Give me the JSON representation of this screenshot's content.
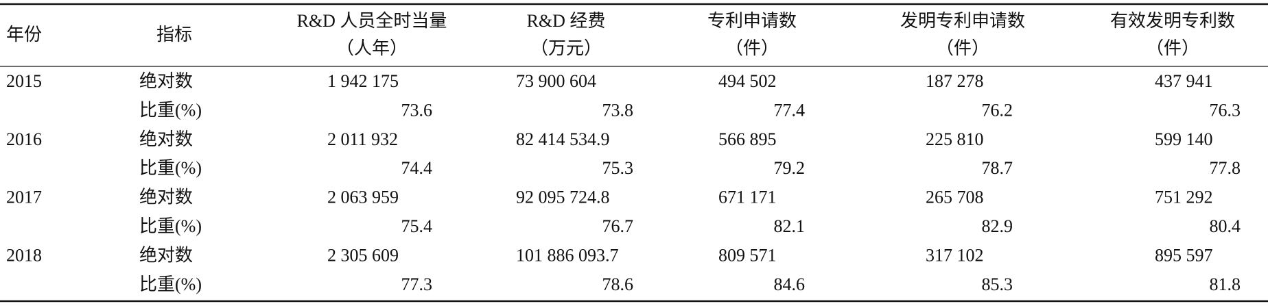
{
  "table": {
    "columns": [
      {
        "title": "年份"
      },
      {
        "title": "指标"
      },
      {
        "title": "R&D 人员全时当量",
        "unit": "（人年）"
      },
      {
        "title": "R&D 经费",
        "unit": "（万元）"
      },
      {
        "title": "专利申请数",
        "unit": "（件）"
      },
      {
        "title": "发明专利申请数",
        "unit": "（件）"
      },
      {
        "title": "有效发明专利数",
        "unit": "（件）"
      }
    ],
    "rows": [
      {
        "year": "2015",
        "absolute": {
          "label": "绝对数",
          "values": [
            "1 942 175",
            "73 900 604",
            "494 502",
            "187 278",
            "437 941"
          ]
        },
        "share": {
          "label": "比重(%)",
          "values": [
            "73.6",
            "73.8",
            "77.4",
            "76.2",
            "76.3"
          ]
        }
      },
      {
        "year": "2016",
        "absolute": {
          "label": "绝对数",
          "values": [
            "2 011 932",
            "82 414 534.9",
            "566 895",
            "225 810",
            "599 140"
          ]
        },
        "share": {
          "label": "比重(%)",
          "values": [
            "74.4",
            "75.3",
            "79.2",
            "78.7",
            "77.8"
          ]
        }
      },
      {
        "year": "2017",
        "absolute": {
          "label": "绝对数",
          "values": [
            "2 063 959",
            "92 095 724.8",
            "671 171",
            "265 708",
            "751 292"
          ]
        },
        "share": {
          "label": "比重(%)",
          "values": [
            "75.4",
            "76.7",
            "82.1",
            "82.9",
            "80.4"
          ]
        }
      },
      {
        "year": "2018",
        "absolute": {
          "label": "绝对数",
          "values": [
            "2 305 609",
            "101 886 093.7",
            "809 571",
            "317 102",
            "895 597"
          ]
        },
        "share": {
          "label": "比重(%)",
          "values": [
            "77.3",
            "78.6",
            "84.6",
            "85.3",
            "81.8"
          ]
        }
      }
    ]
  }
}
